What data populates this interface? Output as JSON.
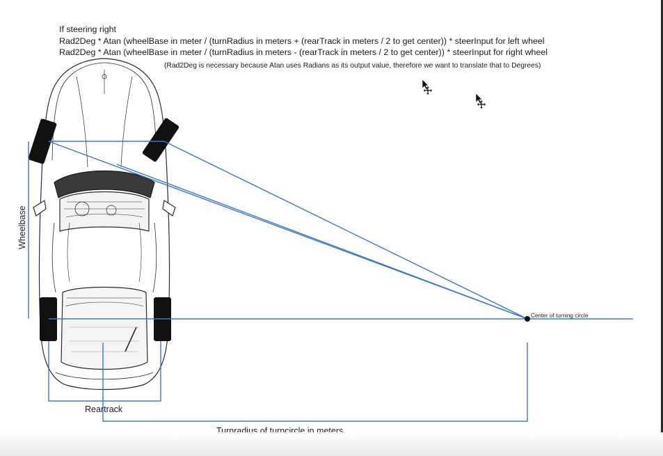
{
  "formula": {
    "condition": "If steering right",
    "left_wheel": "Rad2Deg * Atan (wheelBase in meter / (turnRadius in meters + (rearTrack in meters / 2 to get center)) * steerInput for left wheel",
    "right_wheel": "Rad2Deg * Atan (wheelBase in meter / (turnRadius in meters - (rearTrack in meters / 2 to get center)) * steerInput for right wheel",
    "note": "(Rad2Deg is necessary because Atan uses Radians as its output value, therefore we want to translate that to Degrees)"
  },
  "labels": {
    "wheelbase": "Wheelbase",
    "reartrack": "Reartrack",
    "turn_radius": "Turnradius of turncircle in meters",
    "center": "Center of turning circle"
  },
  "colors": {
    "construction_line": "#3d78c4",
    "tire": "#111111",
    "car_outline": "#2b2b2b"
  },
  "icons": [
    "cursor-move-icon",
    "cursor-move-icon"
  ]
}
